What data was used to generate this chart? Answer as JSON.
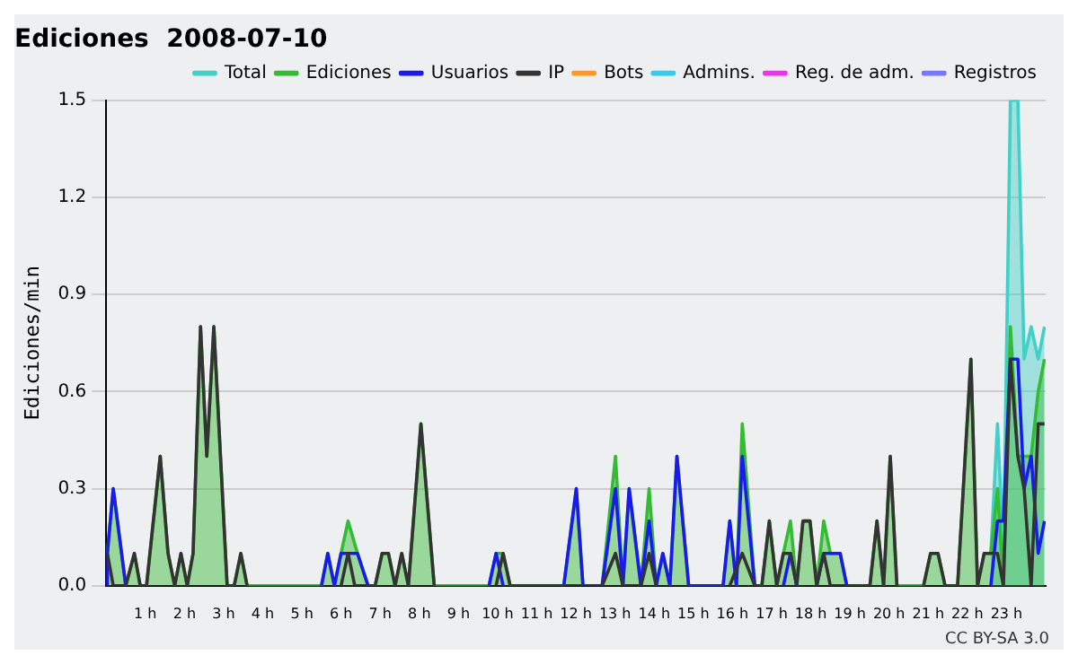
{
  "chart_data": {
    "type": "line",
    "title": "Ediciones  2008-07-10",
    "ylabel": "Ediciones/min",
    "xlim": [
      0,
      24
    ],
    "xticks": [
      {
        "value": 1,
        "label": "1 h"
      },
      {
        "value": 2,
        "label": "2 h"
      },
      {
        "value": 3,
        "label": "3 h"
      },
      {
        "value": 4,
        "label": "4 h"
      },
      {
        "value": 5,
        "label": "5 h"
      },
      {
        "value": 6,
        "label": "6 h"
      },
      {
        "value": 7,
        "label": "7 h"
      },
      {
        "value": 8,
        "label": "8 h"
      },
      {
        "value": 9,
        "label": "9 h"
      },
      {
        "value": 10,
        "label": "10 h"
      },
      {
        "value": 11,
        "label": "11 h"
      },
      {
        "value": 12,
        "label": "12 h"
      },
      {
        "value": 13,
        "label": "13 h"
      },
      {
        "value": 14,
        "label": "14 h"
      },
      {
        "value": 15,
        "label": "15 h"
      },
      {
        "value": 16,
        "label": "16 h"
      },
      {
        "value": 17,
        "label": "17 h"
      },
      {
        "value": 18,
        "label": "18 h"
      },
      {
        "value": 19,
        "label": "19 h"
      },
      {
        "value": 20,
        "label": "20 h"
      },
      {
        "value": 21,
        "label": "21 h"
      },
      {
        "value": 22,
        "label": "22 h"
      },
      {
        "value": 23,
        "label": "23 h"
      }
    ],
    "ylim": [
      0,
      1.5
    ],
    "yticks": [
      {
        "value": 0,
        "label": "0.0"
      },
      {
        "value": 0.3,
        "label": "0.3"
      },
      {
        "value": 0.6,
        "label": "0.6"
      },
      {
        "value": 0.9,
        "label": "0.9"
      },
      {
        "value": 1.2,
        "label": "1.2"
      },
      {
        "value": 1.5,
        "label": "1.5"
      }
    ],
    "grid": "y",
    "legend": "top right",
    "marker": "none",
    "line_style": "solid",
    "annotations": [
      "CC BY-SA 3.0"
    ],
    "series": [
      {
        "name": "Total",
        "type": "area",
        "color": "#40d0c8",
        "x": [
          22.6,
          22.77,
          22.92,
          23.1,
          23.29,
          23.45,
          23.63,
          23.81,
          23.97
        ],
        "values": [
          0.1,
          0.5,
          0.1,
          1.5,
          1.5,
          0.7,
          0.8,
          0.7,
          0.8
        ]
      },
      {
        "name": "Ediciones",
        "type": "area",
        "color": "#33bb33",
        "x": [
          0.03,
          0.18,
          0.5,
          0.72,
          0.87,
          1.03,
          1.38,
          1.58,
          1.75,
          1.91,
          2.07,
          2.22,
          2.41,
          2.57,
          2.75,
          3.09,
          3.27,
          3.44,
          3.6,
          5.5,
          5.66,
          5.83,
          6.0,
          6.18,
          6.42,
          6.69,
          6.87,
          7.05,
          7.21,
          7.38,
          7.55,
          7.72,
          8.04,
          8.38,
          9.78,
          9.96,
          10.14,
          10.32,
          11.69,
          12.01,
          12.18,
          12.67,
          13.01,
          13.2,
          13.36,
          13.66,
          13.87,
          14.05,
          14.22,
          14.4,
          14.58,
          14.88,
          15.76,
          15.93,
          16.1,
          16.25,
          16.57,
          16.75,
          16.94,
          17.13,
          17.3,
          17.48,
          17.64,
          17.8,
          17.98,
          18.15,
          18.33,
          18.5,
          18.75,
          18.92,
          19.51,
          19.69,
          19.86,
          20.03,
          20.2,
          20.88,
          21.06,
          21.25,
          21.43,
          21.75,
          22.09,
          22.26,
          22.43,
          22.6,
          22.77,
          22.92,
          23.1,
          23.29,
          23.45,
          23.63,
          23.81,
          23.97
        ],
        "values": [
          0.1,
          0.3,
          0,
          0.1,
          0,
          0,
          0.4,
          0.1,
          0,
          0.1,
          0,
          0.1,
          0.8,
          0.4,
          0.8,
          0,
          0,
          0.1,
          0,
          0,
          0.1,
          0,
          0.1,
          0.2,
          0.1,
          0,
          0,
          0.1,
          0.1,
          0,
          0.1,
          0,
          0.5,
          0,
          0,
          0.1,
          0.1,
          0,
          0,
          0.3,
          0,
          0,
          0.4,
          0,
          0.3,
          0,
          0.3,
          0,
          0.1,
          0,
          0.4,
          0,
          0,
          0.2,
          0,
          0.5,
          0,
          0,
          0.2,
          0,
          0.1,
          0.2,
          0,
          0.2,
          0.2,
          0,
          0.2,
          0.1,
          0.1,
          0,
          0,
          0.2,
          0,
          0.4,
          0,
          0,
          0.1,
          0.1,
          0,
          0,
          0.7,
          0,
          0.1,
          0.1,
          0.3,
          0,
          0.8,
          0.4,
          0.4,
          0.4,
          0.6,
          0.7
        ]
      },
      {
        "name": "Usuarios",
        "type": "line",
        "color": "#1a1aee",
        "x": [
          0,
          0.03,
          0.18,
          0.5,
          3,
          5.5,
          5.66,
          5.83,
          6.0,
          6.42,
          6.69,
          8,
          9.78,
          9.96,
          10.14,
          11,
          11.69,
          12.01,
          12.18,
          12.67,
          13.01,
          13.2,
          13.36,
          13.66,
          13.87,
          14.05,
          14.22,
          14.4,
          14.58,
          14.88,
          15.76,
          15.93,
          16.1,
          16.25,
          16.57,
          17,
          17.3,
          17.48,
          17.64,
          17.9,
          18.15,
          18.33,
          18.75,
          18.92,
          20.5,
          22.6,
          22.77,
          22.92,
          23.1,
          23.29,
          23.45,
          23.63,
          23.81,
          23.97
        ],
        "values": [
          0,
          0.1,
          0.3,
          0,
          null,
          0,
          0.1,
          0,
          0.1,
          0.1,
          0,
          null,
          0,
          0.1,
          0,
          null,
          0,
          0.3,
          0,
          0,
          0.3,
          0,
          0.3,
          0,
          0.2,
          0,
          0.1,
          0,
          0.4,
          0,
          0,
          0.2,
          0,
          0.4,
          0,
          null,
          0,
          0.1,
          0,
          null,
          0,
          0.1,
          0.1,
          0,
          null,
          0,
          0.2,
          0.2,
          0.7,
          0.7,
          0.3,
          0.4,
          0.1,
          0.2
        ]
      },
      {
        "name": "IP",
        "type": "line",
        "color": "#333333",
        "x": [
          0.03,
          0.18,
          0.5,
          0.72,
          0.87,
          1.03,
          1.38,
          1.58,
          1.75,
          1.91,
          2.07,
          2.22,
          2.41,
          2.57,
          2.75,
          3.09,
          3.27,
          3.44,
          3.6,
          4.5,
          6.0,
          6.18,
          6.35,
          6.87,
          7.05,
          7.21,
          7.38,
          7.55,
          7.72,
          8.04,
          8.38,
          9,
          9.96,
          10.14,
          10.32,
          12.67,
          13.01,
          13.2,
          13.66,
          13.87,
          14.05,
          15,
          15.93,
          16.25,
          16.57,
          16.75,
          16.94,
          17.13,
          17.3,
          17.48,
          17.64,
          17.8,
          17.98,
          18.15,
          18.33,
          18.5,
          19.51,
          19.69,
          19.86,
          20.03,
          20.2,
          20.5,
          20.88,
          21.06,
          21.25,
          21.43,
          21.75,
          22.09,
          22.26,
          22.43,
          22.77,
          22.92,
          23.1,
          23.29,
          23.45,
          23.63,
          23.81,
          23.97
        ],
        "values": [
          0.1,
          0,
          0,
          0.1,
          0,
          0,
          0.4,
          0.1,
          0,
          0.1,
          0,
          0.1,
          0.8,
          0.4,
          0.8,
          0,
          0,
          0.1,
          0,
          null,
          0,
          0.1,
          0,
          0,
          0.1,
          0.1,
          0,
          0.1,
          0,
          0.5,
          0,
          null,
          0,
          0.1,
          0,
          0,
          0.1,
          0,
          0,
          0.1,
          0,
          null,
          0,
          0.1,
          0,
          0,
          0.2,
          0,
          0.1,
          0.1,
          0,
          0.2,
          0.2,
          0,
          0.1,
          0,
          0,
          0.2,
          0,
          0.4,
          0,
          null,
          0,
          0.1,
          0.1,
          0,
          0,
          0.7,
          0,
          0.1,
          0.1,
          0,
          0.7,
          0.4,
          0.3,
          0,
          0.5,
          0.5
        ]
      },
      {
        "name": "Bots",
        "type": "line",
        "color": "#ff9922"
      },
      {
        "name": "Admins.",
        "type": "line",
        "color": "#33ccee"
      },
      {
        "name": "Reg. de adm.",
        "type": "line",
        "color": "#ee33ee"
      },
      {
        "name": "Registros",
        "type": "line",
        "color": "#7777ff"
      }
    ]
  }
}
